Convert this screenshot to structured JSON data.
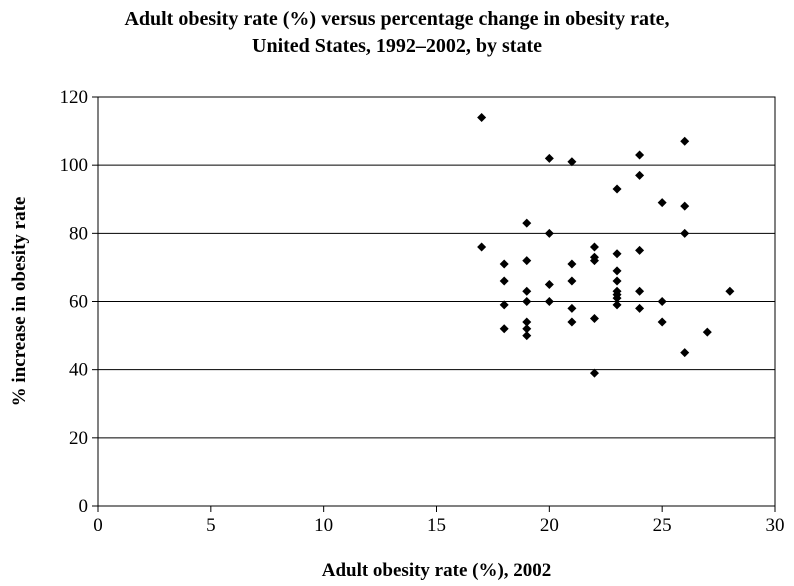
{
  "chart_data": {
    "type": "scatter",
    "title_line1": "Adult obesity rate (%) versus percentage change in obesity rate,",
    "title_line2": "United States, 1992–2002, by state",
    "xlabel": "Adult obesity rate (%), 2002",
    "ylabel": "% increase in obesity rate",
    "xlim": [
      0,
      30
    ],
    "ylim": [
      0,
      120
    ],
    "xticks": [
      0,
      5,
      10,
      15,
      20,
      25,
      30
    ],
    "yticks": [
      0,
      20,
      40,
      60,
      80,
      100,
      120
    ],
    "grid": "horizontal",
    "marker": "diamond",
    "marker_color": "#000000",
    "points": [
      [
        17,
        114
      ],
      [
        17,
        76
      ],
      [
        18,
        71
      ],
      [
        18,
        66
      ],
      [
        18,
        59
      ],
      [
        18,
        52
      ],
      [
        19,
        83
      ],
      [
        19,
        72
      ],
      [
        19,
        63
      ],
      [
        19,
        60
      ],
      [
        19,
        54
      ],
      [
        19,
        52
      ],
      [
        19,
        50
      ],
      [
        20,
        102
      ],
      [
        20,
        80
      ],
      [
        20,
        65
      ],
      [
        20,
        60
      ],
      [
        21,
        101
      ],
      [
        21,
        71
      ],
      [
        21,
        66
      ],
      [
        21,
        58
      ],
      [
        21,
        54
      ],
      [
        22,
        76
      ],
      [
        22,
        73
      ],
      [
        22,
        72
      ],
      [
        22,
        55
      ],
      [
        22,
        39
      ],
      [
        23,
        93
      ],
      [
        23,
        74
      ],
      [
        23,
        69
      ],
      [
        23,
        66
      ],
      [
        23,
        63
      ],
      [
        23,
        62
      ],
      [
        23,
        61
      ],
      [
        23,
        59
      ],
      [
        24,
        103
      ],
      [
        24,
        97
      ],
      [
        24,
        75
      ],
      [
        24,
        63
      ],
      [
        24,
        58
      ],
      [
        25,
        89
      ],
      [
        25,
        60
      ],
      [
        25,
        54
      ],
      [
        26,
        107
      ],
      [
        26,
        88
      ],
      [
        26,
        80
      ],
      [
        26,
        45
      ],
      [
        27,
        51
      ],
      [
        28,
        63
      ]
    ]
  }
}
